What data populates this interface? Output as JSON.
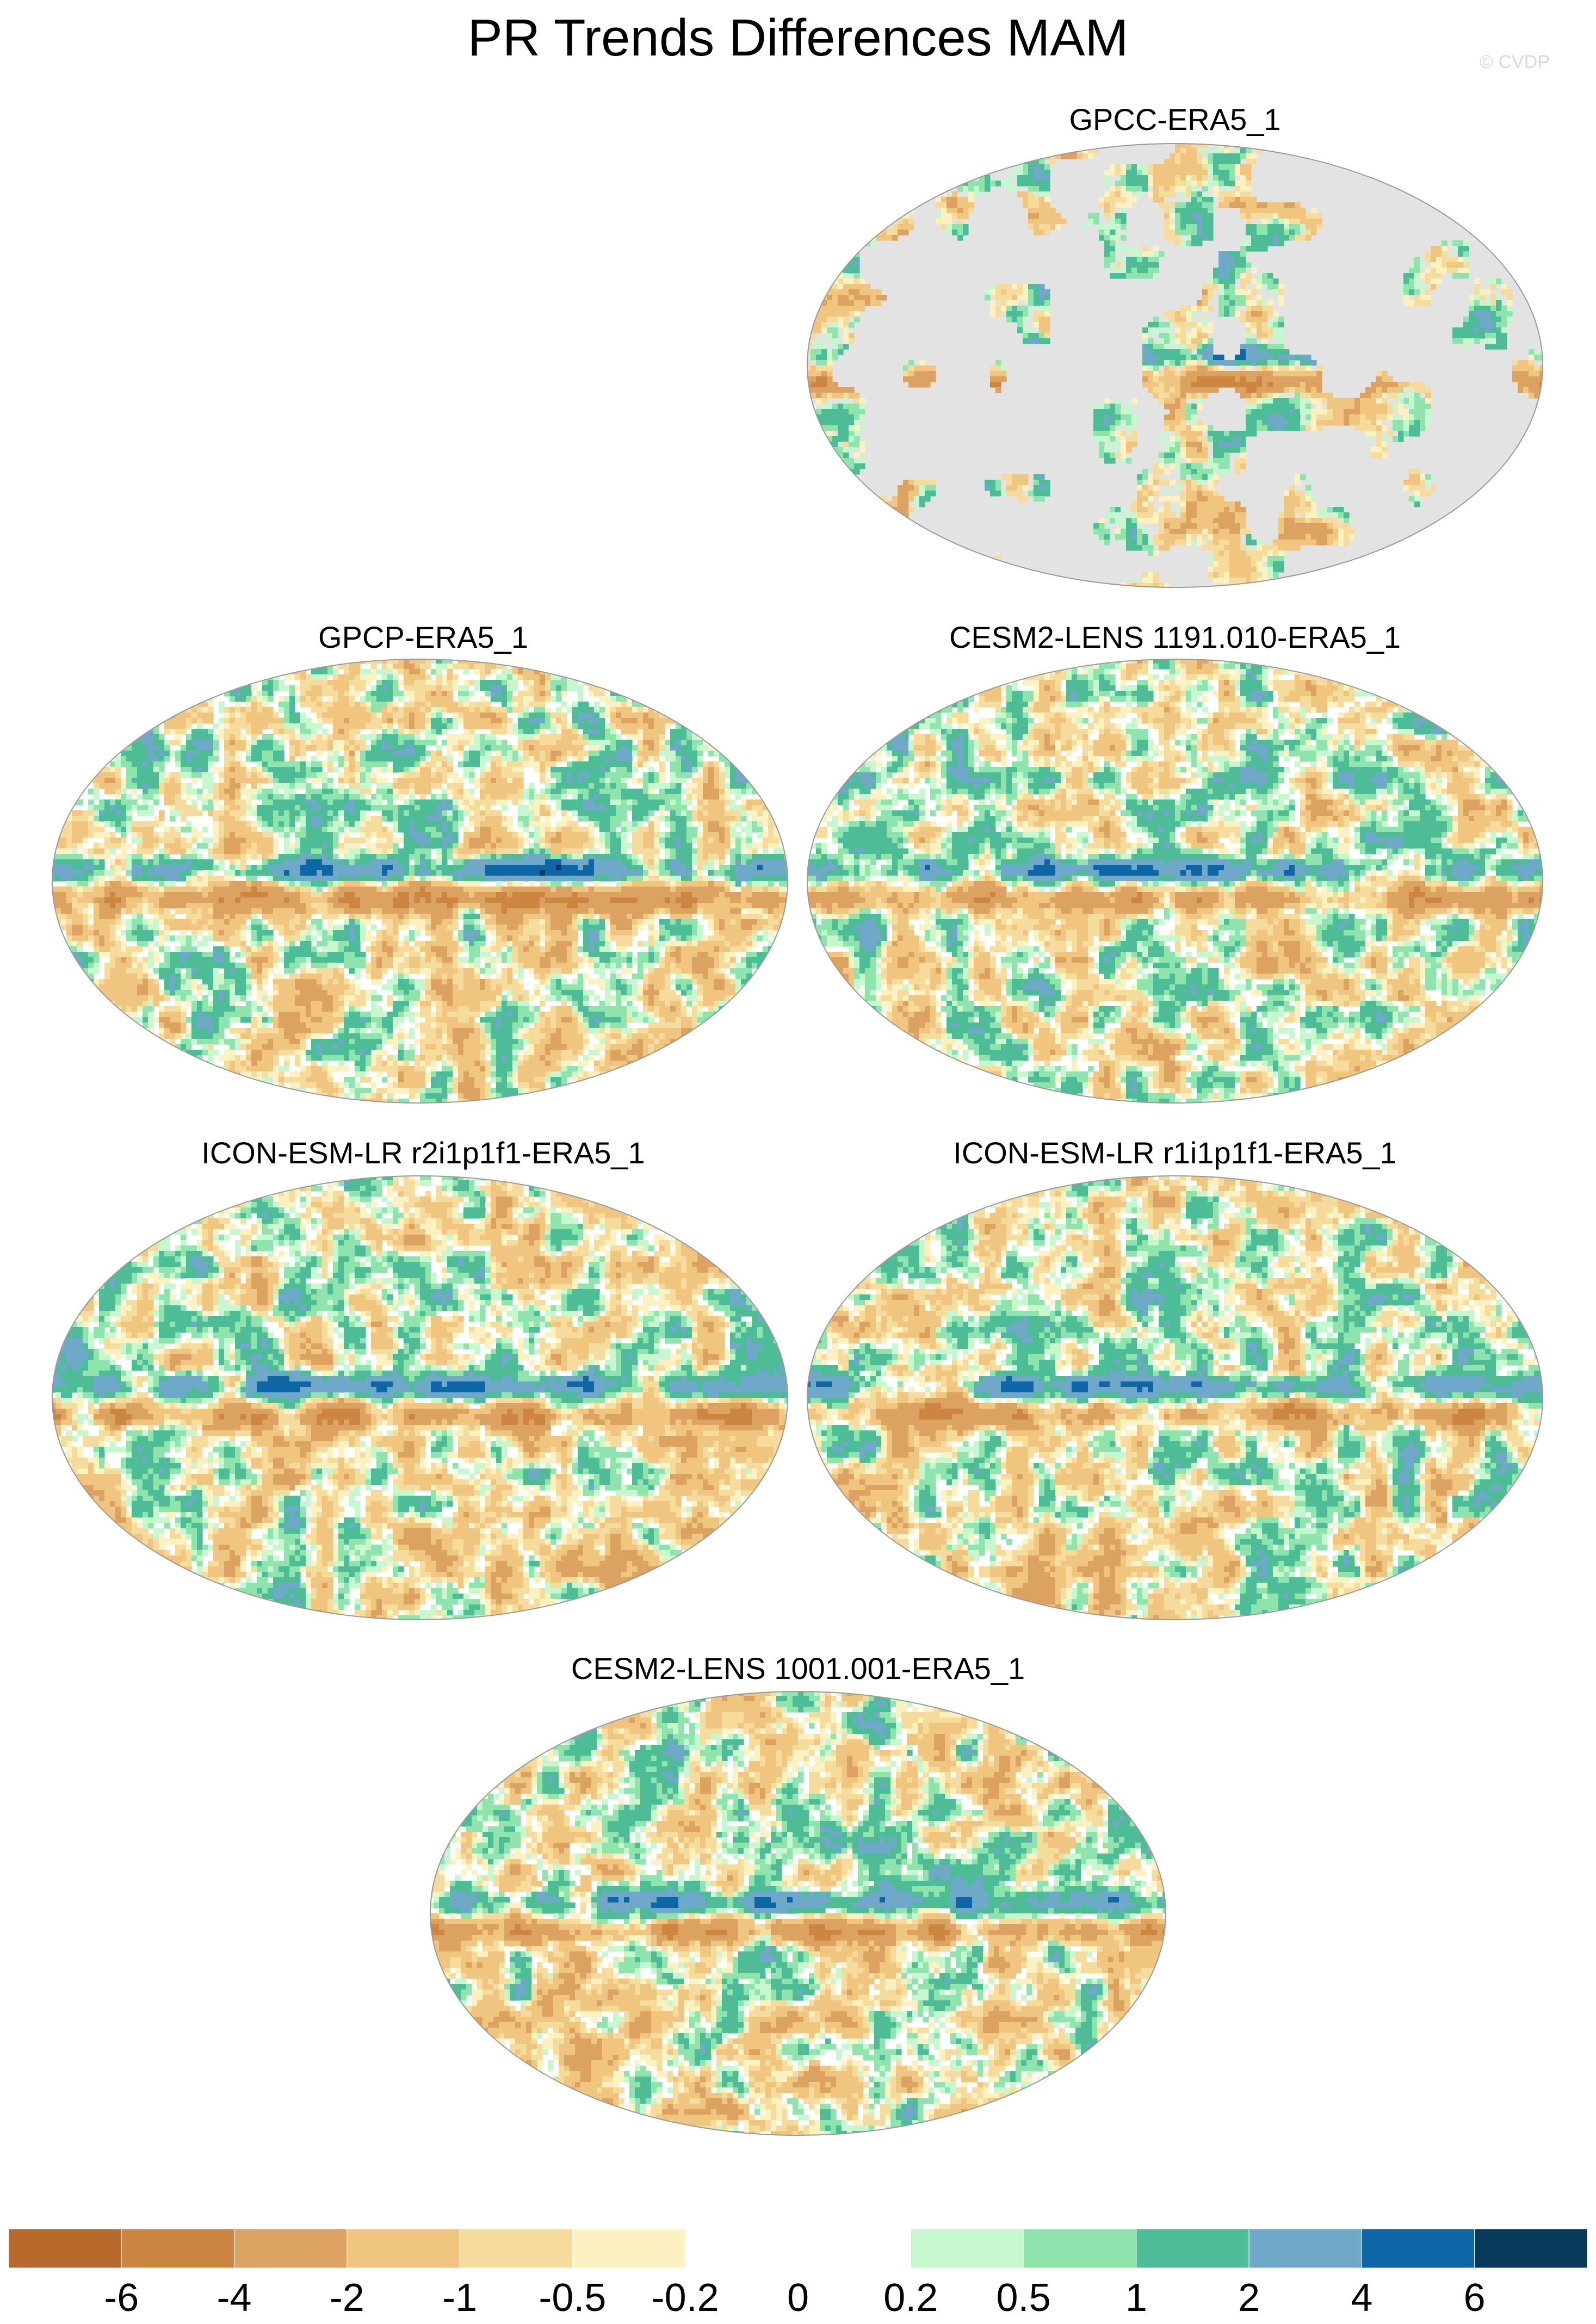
{
  "title": "PR Trends Differences MAM",
  "watermark": "© CVDP",
  "panels": [
    {
      "title": "GPCC-ERA5_1",
      "kind": "land-only"
    },
    {
      "title": "GPCP-ERA5_1",
      "kind": "global"
    },
    {
      "title": "CESM2-LENS 1191.010-ERA5_1",
      "kind": "global"
    },
    {
      "title": "ICON-ESM-LR r2i1p1f1-ERA5_1",
      "kind": "global"
    },
    {
      "title": "ICON-ESM-LR r1i1p1f1-ERA5_1",
      "kind": "global"
    },
    {
      "title": "CESM2-LENS 1001.001-ERA5_1",
      "kind": "global"
    }
  ],
  "colorbar": {
    "labels": [
      "-6",
      "-4",
      "-2",
      "-1",
      "-0.5",
      "-0.2",
      "0",
      "0.2",
      "0.5",
      "1",
      "2",
      "4",
      "6"
    ],
    "colors": [
      "#b8692c",
      "#cc8641",
      "#dba262",
      "#efc57f",
      "#f5dc9c",
      "#fcf1c1",
      "#ffffff",
      "#ffffff",
      "#c7f7cf",
      "#8fe4ad",
      "#4fbc98",
      "#6fa8c8",
      "#0f66a6",
      "#083a5c"
    ]
  }
}
